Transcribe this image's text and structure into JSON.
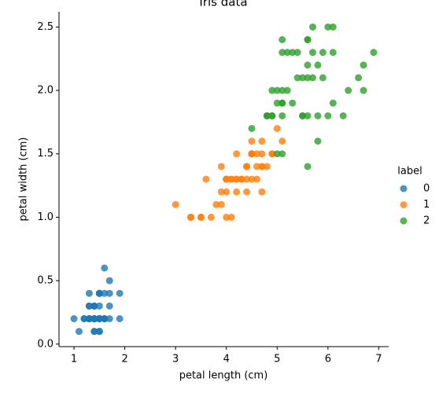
{
  "chart_data": {
    "type": "scatter",
    "title": "Iris data",
    "xlabel": "petal length (cm)",
    "ylabel": "petal width (cm)",
    "legend_title": "label",
    "legend_position": "right",
    "xlim": [
      0.705,
      7.195
    ],
    "ylim": [
      -0.02,
      2.62
    ],
    "xticks": [
      1,
      2,
      3,
      4,
      5,
      6,
      7
    ],
    "yticks": [
      {
        "value": 0,
        "label": "0.0"
      },
      0.5,
      {
        "value": 1,
        "label": "1.0"
      },
      1.5,
      {
        "value": 2,
        "label": "2.0"
      },
      2.5
    ],
    "series": [
      {
        "name": "0",
        "color": "#1f77b4",
        "x": [
          1.4,
          1.4,
          1.3,
          1.5,
          1.4,
          1.7,
          1.4,
          1.5,
          1.4,
          1.5,
          1.5,
          1.6,
          1.4,
          1.1,
          1.2,
          1.5,
          1.3,
          1.4,
          1.7,
          1.5,
          1.7,
          1.5,
          1.0,
          1.7,
          1.9,
          1.6,
          1.6,
          1.5,
          1.4,
          1.6,
          1.6,
          1.5,
          1.5,
          1.4,
          1.5,
          1.2,
          1.3,
          1.4,
          1.3,
          1.5,
          1.3,
          1.3,
          1.3,
          1.6,
          1.9,
          1.4,
          1.6,
          1.4,
          1.5,
          1.4
        ],
        "y": [
          0.2,
          0.2,
          0.2,
          0.2,
          0.2,
          0.4,
          0.3,
          0.2,
          0.2,
          0.1,
          0.2,
          0.2,
          0.1,
          0.1,
          0.2,
          0.4,
          0.4,
          0.3,
          0.3,
          0.3,
          0.2,
          0.4,
          0.2,
          0.5,
          0.2,
          0.2,
          0.4,
          0.2,
          0.2,
          0.2,
          0.2,
          0.4,
          0.1,
          0.2,
          0.2,
          0.2,
          0.2,
          0.1,
          0.2,
          0.2,
          0.3,
          0.3,
          0.2,
          0.6,
          0.4,
          0.3,
          0.2,
          0.2,
          0.2,
          0.2
        ]
      },
      {
        "name": "1",
        "color": "#ff7f0e",
        "x": [
          4.7,
          4.5,
          4.9,
          4.0,
          4.6,
          4.5,
          4.7,
          3.3,
          4.6,
          3.9,
          3.5,
          4.2,
          4.0,
          4.7,
          3.6,
          4.4,
          4.5,
          4.1,
          4.5,
          3.9,
          4.8,
          4.0,
          4.9,
          4.7,
          4.3,
          4.4,
          4.8,
          5.0,
          4.5,
          3.5,
          3.8,
          3.7,
          3.9,
          5.1,
          4.5,
          4.5,
          4.7,
          4.4,
          4.1,
          4.0,
          4.4,
          4.6,
          4.0,
          3.3,
          4.2,
          4.2,
          4.2,
          4.3,
          3.0,
          4.1
        ],
        "y": [
          1.4,
          1.5,
          1.5,
          1.3,
          1.5,
          1.3,
          1.6,
          1.0,
          1.3,
          1.4,
          1.0,
          1.5,
          1.0,
          1.4,
          1.3,
          1.4,
          1.5,
          1.0,
          1.5,
          1.1,
          1.8,
          1.3,
          1.5,
          1.2,
          1.3,
          1.4,
          1.4,
          1.7,
          1.5,
          1.0,
          1.1,
          1.0,
          1.2,
          1.6,
          1.5,
          1.6,
          1.5,
          1.3,
          1.3,
          1.3,
          1.2,
          1.4,
          1.2,
          1.0,
          1.3,
          1.2,
          1.3,
          1.3,
          1.1,
          1.3
        ]
      },
      {
        "name": "2",
        "color": "#2ca02c",
        "x": [
          6.0,
          5.1,
          5.9,
          5.6,
          5.8,
          6.6,
          4.5,
          6.3,
          5.8,
          6.1,
          5.1,
          5.3,
          5.5,
          5.0,
          5.1,
          5.3,
          5.5,
          6.7,
          6.9,
          5.0,
          5.7,
          4.9,
          6.7,
          4.9,
          5.7,
          6.0,
          4.8,
          4.9,
          5.6,
          5.8,
          6.1,
          6.4,
          5.6,
          5.1,
          5.6,
          6.1,
          5.6,
          5.5,
          4.8,
          5.4,
          5.6,
          5.1,
          5.1,
          5.9,
          5.7,
          5.2,
          5.0,
          5.2,
          5.4,
          5.1
        ],
        "y": [
          2.5,
          1.9,
          2.1,
          1.8,
          2.2,
          2.1,
          1.7,
          1.8,
          1.8,
          2.5,
          2.0,
          1.9,
          2.1,
          2.0,
          2.4,
          2.3,
          1.8,
          2.2,
          2.3,
          1.5,
          2.3,
          2.0,
          2.0,
          1.8,
          2.1,
          1.8,
          1.8,
          1.8,
          2.1,
          1.6,
          1.9,
          2.0,
          2.2,
          1.5,
          1.4,
          2.3,
          2.4,
          1.8,
          1.8,
          2.1,
          2.4,
          2.3,
          1.9,
          2.3,
          2.5,
          2.3,
          1.9,
          2.0,
          2.3,
          1.8
        ]
      }
    ]
  }
}
